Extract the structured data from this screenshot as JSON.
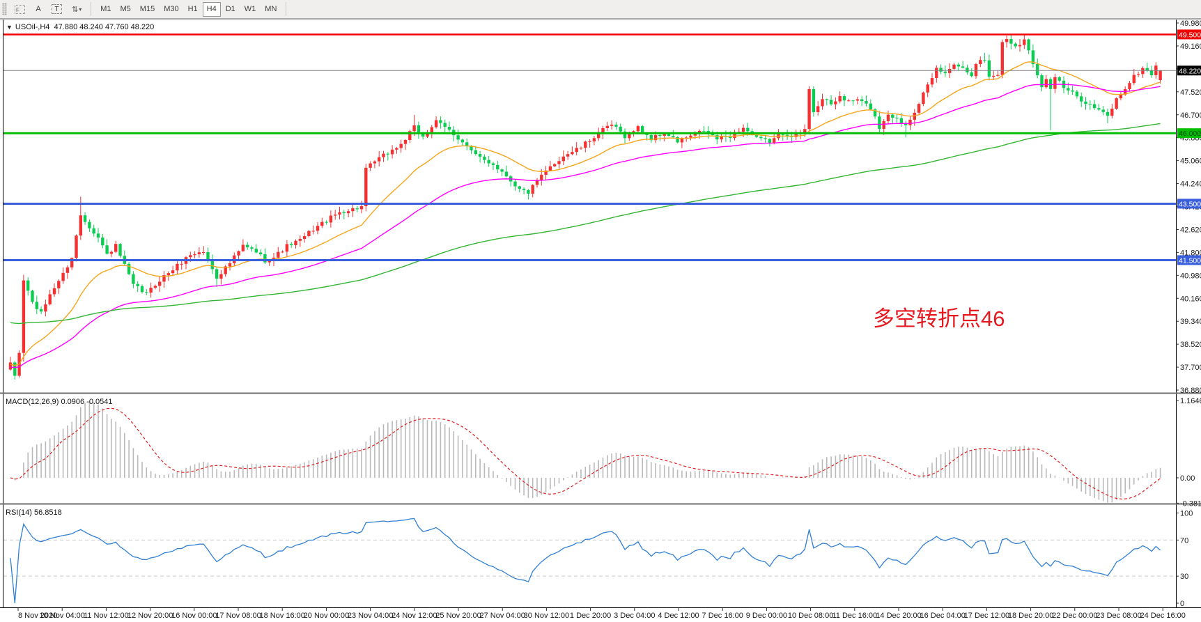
{
  "toolbar": {
    "f_tool": "F",
    "a_tool": "A",
    "t_tool": "T",
    "arrows_tool": "⇅",
    "caret": "▾",
    "timeframes": [
      "M1",
      "M5",
      "M15",
      "M30",
      "H1",
      "H4",
      "D1",
      "W1",
      "MN"
    ],
    "active_timeframe": "H4"
  },
  "chart": {
    "title_marker": "▼",
    "title": "USOil-,H4  47.880 48.240 47.760 48.220"
  },
  "annotation": {
    "text": "多空转折点46",
    "color": "#e6191f"
  },
  "indicators": {
    "macd": {
      "label": "MACD(12,26,9) 0.0906 -0.0541",
      "axis": [
        "1.1646",
        "0.00",
        "-0.3812"
      ]
    },
    "rsi": {
      "label": "RSI(14) 56.8518",
      "axis": [
        "100",
        "70",
        "30",
        "0"
      ]
    }
  },
  "price_axis": {
    "labels": [
      "49.980",
      "49.160",
      "48.340",
      "47.520",
      "46.700",
      "45.880",
      "45.060",
      "44.240",
      "43.420",
      "42.620",
      "41.800",
      "40.980",
      "40.160",
      "39.340",
      "38.520",
      "37.700",
      "36.880"
    ]
  },
  "chart_data": {
    "type": "candlestick",
    "symbol": "USOil-,H4",
    "bars": 263,
    "price_range": [
      36.7,
      50.1
    ],
    "current_price": 48.22,
    "current_price_label": "48.220",
    "ohlc_current": {
      "open": 47.88,
      "high": 48.24,
      "low": 47.76,
      "close": 48.22
    },
    "up_color": "#f53030",
    "down_color": "#0bcd52",
    "close_anchors": [
      [
        0,
        37.8
      ],
      [
        1,
        37.4
      ],
      [
        2,
        38.2
      ],
      [
        3,
        40.8
      ],
      [
        5,
        40.0
      ],
      [
        7,
        39.6
      ],
      [
        9,
        40.3
      ],
      [
        12,
        41.0
      ],
      [
        14,
        41.6
      ],
      [
        16,
        43.1
      ],
      [
        17,
        42.9
      ],
      [
        20,
        42.3
      ],
      [
        22,
        41.7
      ],
      [
        24,
        42.0
      ],
      [
        26,
        41.3
      ],
      [
        28,
        40.6
      ],
      [
        31,
        40.3
      ],
      [
        34,
        40.8
      ],
      [
        38,
        41.3
      ],
      [
        41,
        41.7
      ],
      [
        44,
        41.8
      ],
      [
        46,
        41.2
      ],
      [
        47,
        40.9
      ],
      [
        50,
        41.4
      ],
      [
        53,
        42.0
      ],
      [
        56,
        41.8
      ],
      [
        58,
        41.5
      ],
      [
        60,
        41.6
      ],
      [
        63,
        42.0
      ],
      [
        66,
        42.2
      ],
      [
        69,
        42.6
      ],
      [
        72,
        42.9
      ],
      [
        75,
        43.2
      ],
      [
        78,
        43.3
      ],
      [
        80,
        43.4
      ],
      [
        81,
        44.7
      ],
      [
        83,
        45.0
      ],
      [
        86,
        45.3
      ],
      [
        89,
        45.6
      ],
      [
        92,
        46.2
      ],
      [
        94,
        45.9
      ],
      [
        97,
        46.4
      ],
      [
        100,
        46.1
      ],
      [
        103,
        45.7
      ],
      [
        106,
        45.2
      ],
      [
        110,
        44.9
      ],
      [
        113,
        44.5
      ],
      [
        116,
        44.0
      ],
      [
        118,
        43.9
      ],
      [
        120,
        44.3
      ],
      [
        123,
        44.8
      ],
      [
        126,
        45.2
      ],
      [
        130,
        45.5
      ],
      [
        134,
        46.0
      ],
      [
        137,
        46.3
      ],
      [
        140,
        45.9
      ],
      [
        143,
        46.2
      ],
      [
        146,
        45.8
      ],
      [
        149,
        46.0
      ],
      [
        152,
        45.7
      ],
      [
        155,
        45.9
      ],
      [
        158,
        46.1
      ],
      [
        161,
        45.8
      ],
      [
        164,
        45.9
      ],
      [
        167,
        46.2
      ],
      [
        170,
        45.8
      ],
      [
        173,
        45.7
      ],
      [
        176,
        46.0
      ],
      [
        179,
        45.9
      ],
      [
        181,
        46.1
      ],
      [
        182,
        47.6
      ],
      [
        183,
        46.8
      ],
      [
        185,
        47.2
      ],
      [
        187,
        47.0
      ],
      [
        189,
        47.3
      ],
      [
        191,
        47.1
      ],
      [
        193,
        47.2
      ],
      [
        196,
        46.9
      ],
      [
        198,
        46.2
      ],
      [
        200,
        46.7
      ],
      [
        202,
        46.5
      ],
      [
        204,
        46.3
      ],
      [
        206,
        46.8
      ],
      [
        208,
        47.4
      ],
      [
        210,
        47.9
      ],
      [
        211,
        48.3
      ],
      [
        213,
        48.1
      ],
      [
        215,
        48.5
      ],
      [
        217,
        48.3
      ],
      [
        219,
        48.1
      ],
      [
        220,
        48.5
      ],
      [
        222,
        48.6
      ],
      [
        223,
        48.0
      ],
      [
        225,
        48.1
      ],
      [
        226,
        49.2
      ],
      [
        227,
        49.35
      ],
      [
        229,
        49.1
      ],
      [
        231,
        49.3
      ],
      [
        233,
        48.5
      ],
      [
        235,
        47.7
      ],
      [
        236,
        47.9
      ],
      [
        237,
        47.6
      ],
      [
        238,
        48.0
      ],
      [
        240,
        47.6
      ],
      [
        242,
        47.4
      ],
      [
        244,
        47.2
      ],
      [
        246,
        47.0
      ],
      [
        248,
        46.8
      ],
      [
        250,
        46.6
      ],
      [
        252,
        47.2
      ],
      [
        254,
        47.6
      ],
      [
        256,
        48.0
      ],
      [
        258,
        48.3
      ],
      [
        260,
        48.1
      ],
      [
        261,
        48.4
      ],
      [
        262,
        48.22
      ]
    ],
    "special_wicks": [
      {
        "bar": 3,
        "low": 37.9
      },
      {
        "bar": 16,
        "high": 43.75
      },
      {
        "bar": 47,
        "low": 40.55
      },
      {
        "bar": 92,
        "high": 46.65
      },
      {
        "bar": 97,
        "high": 46.6
      },
      {
        "bar": 182,
        "low": 45.95
      },
      {
        "bar": 199,
        "low": 45.95
      },
      {
        "bar": 204,
        "low": 45.85
      },
      {
        "bar": 222,
        "high": 48.85
      },
      {
        "bar": 227,
        "high": 49.42
      },
      {
        "bar": 231,
        "high": 49.4
      },
      {
        "bar": 237,
        "low": 46.1
      },
      {
        "bar": 250,
        "low": 46.35
      }
    ],
    "hlines": [
      {
        "price": 49.5,
        "label": "49.500",
        "color": "#f00000",
        "width": 2.5,
        "text_color": "#ffffff"
      },
      {
        "price": 46.0,
        "label": "46.000",
        "color": "#00bd00",
        "width": 3,
        "text_color": "#004000"
      },
      {
        "price": 43.5,
        "label": "43.500",
        "color": "#3a5fdd",
        "width": 3,
        "text_color": "#ffffff"
      },
      {
        "price": 41.5,
        "label": "41.500",
        "color": "#3a5fdd",
        "width": 3,
        "text_color": "#ffffff"
      }
    ],
    "moving_averages": [
      {
        "name": "fast",
        "period": 21,
        "color": "#f7a51b",
        "seed": 37.8
      },
      {
        "name": "medium",
        "period": 55,
        "color": "#ff00ff",
        "seed": 37.7
      },
      {
        "name": "slow",
        "period": 170,
        "color": "#33b533",
        "seed": 39.3
      }
    ],
    "macd": {
      "fast": 12,
      "slow": 26,
      "signal": 9,
      "value": 0.0906,
      "signal_value": -0.0541,
      "axis_max": 1.1646,
      "axis_min": -0.3812,
      "histogram_color": "#bababa",
      "signal_color": "#e02020"
    },
    "rsi": {
      "period": 14,
      "value": 56.8518,
      "levels": [
        70,
        30
      ],
      "line_color": "#2f7fd4",
      "level_color": "#c9c9c9"
    },
    "time_labels": [
      "8 Nov 2020",
      "10 Nov 04:00",
      "11 Nov 12:00",
      "12 Nov 20:00",
      "16 Nov 00:00",
      "17 Nov 08:00",
      "18 Nov 16:00",
      "20 Nov 00:00",
      "23 Nov 04:00",
      "24 Nov 12:00",
      "25 Nov 20:00",
      "27 Nov 04:00",
      "30 Nov 12:00",
      "1 Dec 20:00",
      "3 Dec 04:00",
      "4 Dec 12:00",
      "7 Dec 16:00",
      "9 Dec 00:00",
      "10 Dec 08:00",
      "11 Dec 16:00",
      "14 Dec 20:00",
      "16 Dec 04:00",
      "17 Dec 12:00",
      "18 Dec 20:00",
      "22 Dec 00:00",
      "23 Dec 08:00",
      "24 Dec 16:00"
    ]
  }
}
